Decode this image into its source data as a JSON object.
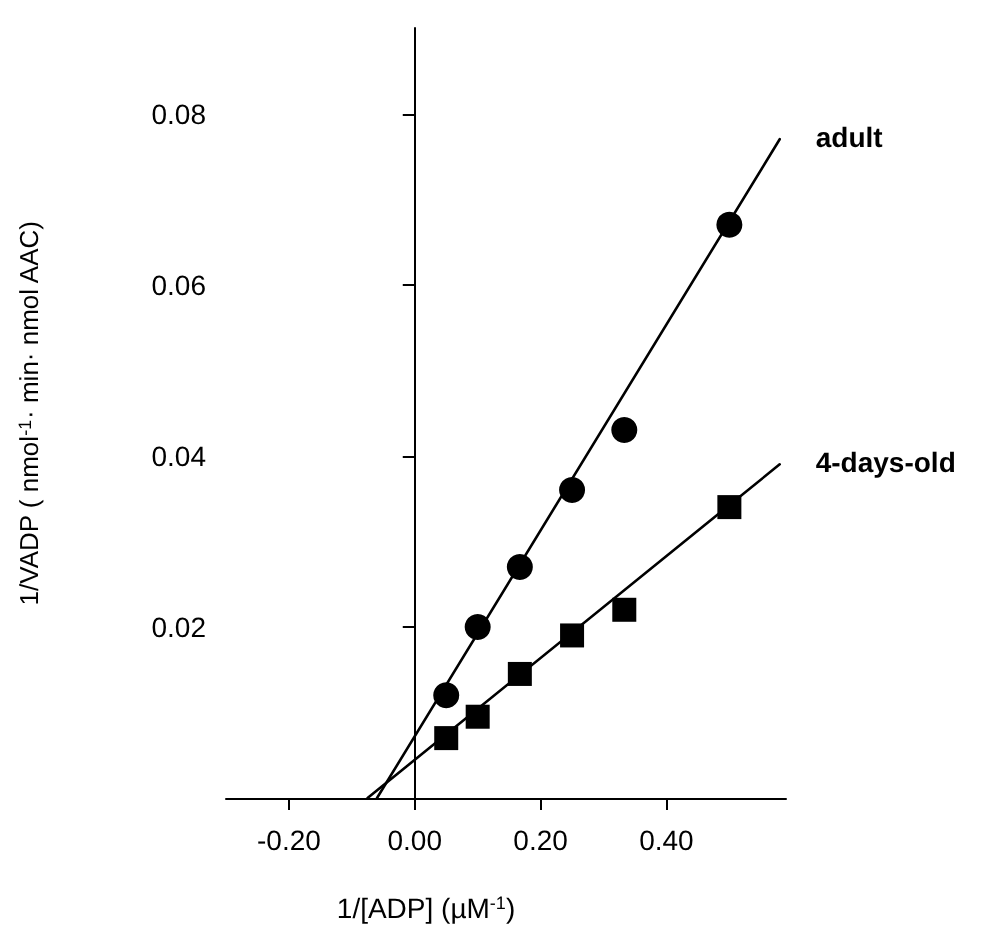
{
  "chart_data": {
    "type": "scatter",
    "xlabel": "1/[ADP] (µM$^{-1}$)",
    "ylabel": "1/VADP ( nmol$^{-1}$· min· nmol AAC)",
    "xlim": [
      -0.3,
      0.59
    ],
    "ylim": [
      0,
      0.09
    ],
    "xticks": [
      {
        "value": -0.2,
        "label": "-0.20"
      },
      {
        "value": 0,
        "label": "0.00"
      },
      {
        "value": 0.2,
        "label": "0.20"
      },
      {
        "value": 0.4,
        "label": "0.40"
      }
    ],
    "yticks": [
      0.02,
      0.04,
      0.06,
      0.08
    ],
    "legend": false,
    "series": [
      {
        "name": "adult",
        "marker": "circle",
        "color": "#000000",
        "x": [
          0.05,
          0.1,
          0.167,
          0.25,
          0.333,
          0.5
        ],
        "values": [
          0.012,
          0.02,
          0.027,
          0.036,
          0.043,
          0.067
        ]
      },
      {
        "name": "4-days-old",
        "marker": "square",
        "color": "#000000",
        "x": [
          0.05,
          0.1,
          0.167,
          0.25,
          0.333,
          0.5
        ],
        "values": [
          0.007,
          0.0095,
          0.0145,
          0.019,
          0.022,
          0.034
        ]
      },
      {
        "type": "line",
        "marker": "none",
        "line_style": "solid",
        "color": "#000000",
        "x": [
          -0.06,
          0.58
        ],
        "values": [
          0,
          0.077
        ]
      },
      {
        "type": "line",
        "marker": "none",
        "line_style": "solid",
        "color": "#000000",
        "x": [
          -0.075,
          0.58
        ],
        "values": [
          0,
          0.039
        ]
      }
    ]
  }
}
